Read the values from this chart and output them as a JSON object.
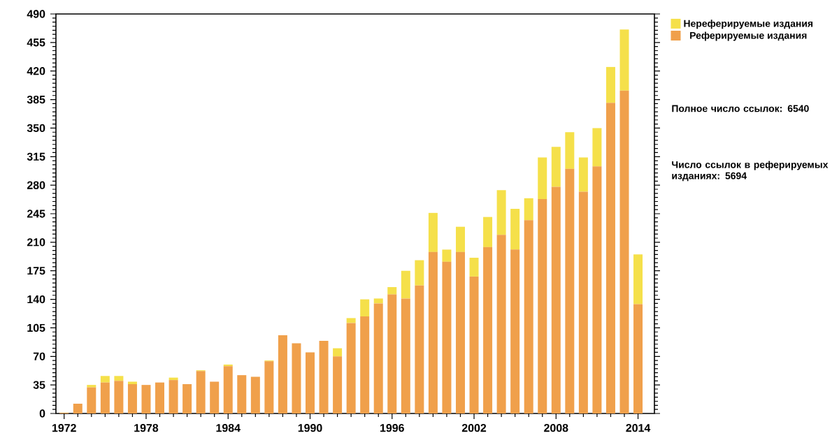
{
  "chart_data": {
    "type": "bar",
    "stacked": true,
    "x": [
      1972,
      1973,
      1974,
      1975,
      1976,
      1977,
      1978,
      1979,
      1980,
      1981,
      1982,
      1983,
      1984,
      1985,
      1986,
      1987,
      1988,
      1989,
      1990,
      1991,
      1992,
      1993,
      1994,
      1995,
      1996,
      1997,
      1998,
      1999,
      2000,
      2001,
      2002,
      2003,
      2004,
      2005,
      2006,
      2007,
      2008,
      2009,
      2010,
      2011,
      2012,
      2013,
      2014
    ],
    "series": [
      {
        "name": "Реферируемые издания",
        "color": "#f0a04b",
        "values": [
          1,
          12,
          32,
          38,
          40,
          36,
          35,
          38,
          41,
          36,
          52,
          39,
          58,
          47,
          45,
          64,
          96,
          86,
          75,
          89,
          70,
          111,
          119,
          135,
          146,
          141,
          157,
          198,
          186,
          198,
          168,
          204,
          219,
          201,
          237,
          263,
          278,
          300,
          272,
          303,
          381,
          396,
          134
        ]
      },
      {
        "name": "Нереферируемые издания",
        "color": "#f5e04a",
        "values": [
          0,
          0,
          3,
          8,
          6,
          3,
          0,
          0,
          3,
          0,
          1,
          0,
          2,
          0,
          0,
          1,
          0,
          0,
          0,
          0,
          10,
          6,
          21,
          6,
          9,
          34,
          31,
          48,
          15,
          31,
          23,
          37,
          55,
          50,
          27,
          51,
          49,
          45,
          42,
          47,
          44,
          75,
          61
        ]
      }
    ],
    "xlim": [
      1971.4,
      2015.2
    ],
    "xticks": [
      1972,
      1978,
      1984,
      1990,
      1996,
      2002,
      2008,
      2014
    ],
    "ylim": [
      0,
      490
    ],
    "yticks": [
      0,
      35,
      70,
      105,
      140,
      175,
      210,
      245,
      280,
      315,
      350,
      385,
      420,
      455,
      490
    ],
    "legend": "top right",
    "annotations": [
      "Полное число ссылок: 6540",
      "Число ссылок в реферируемых изданиях: 5694"
    ]
  }
}
